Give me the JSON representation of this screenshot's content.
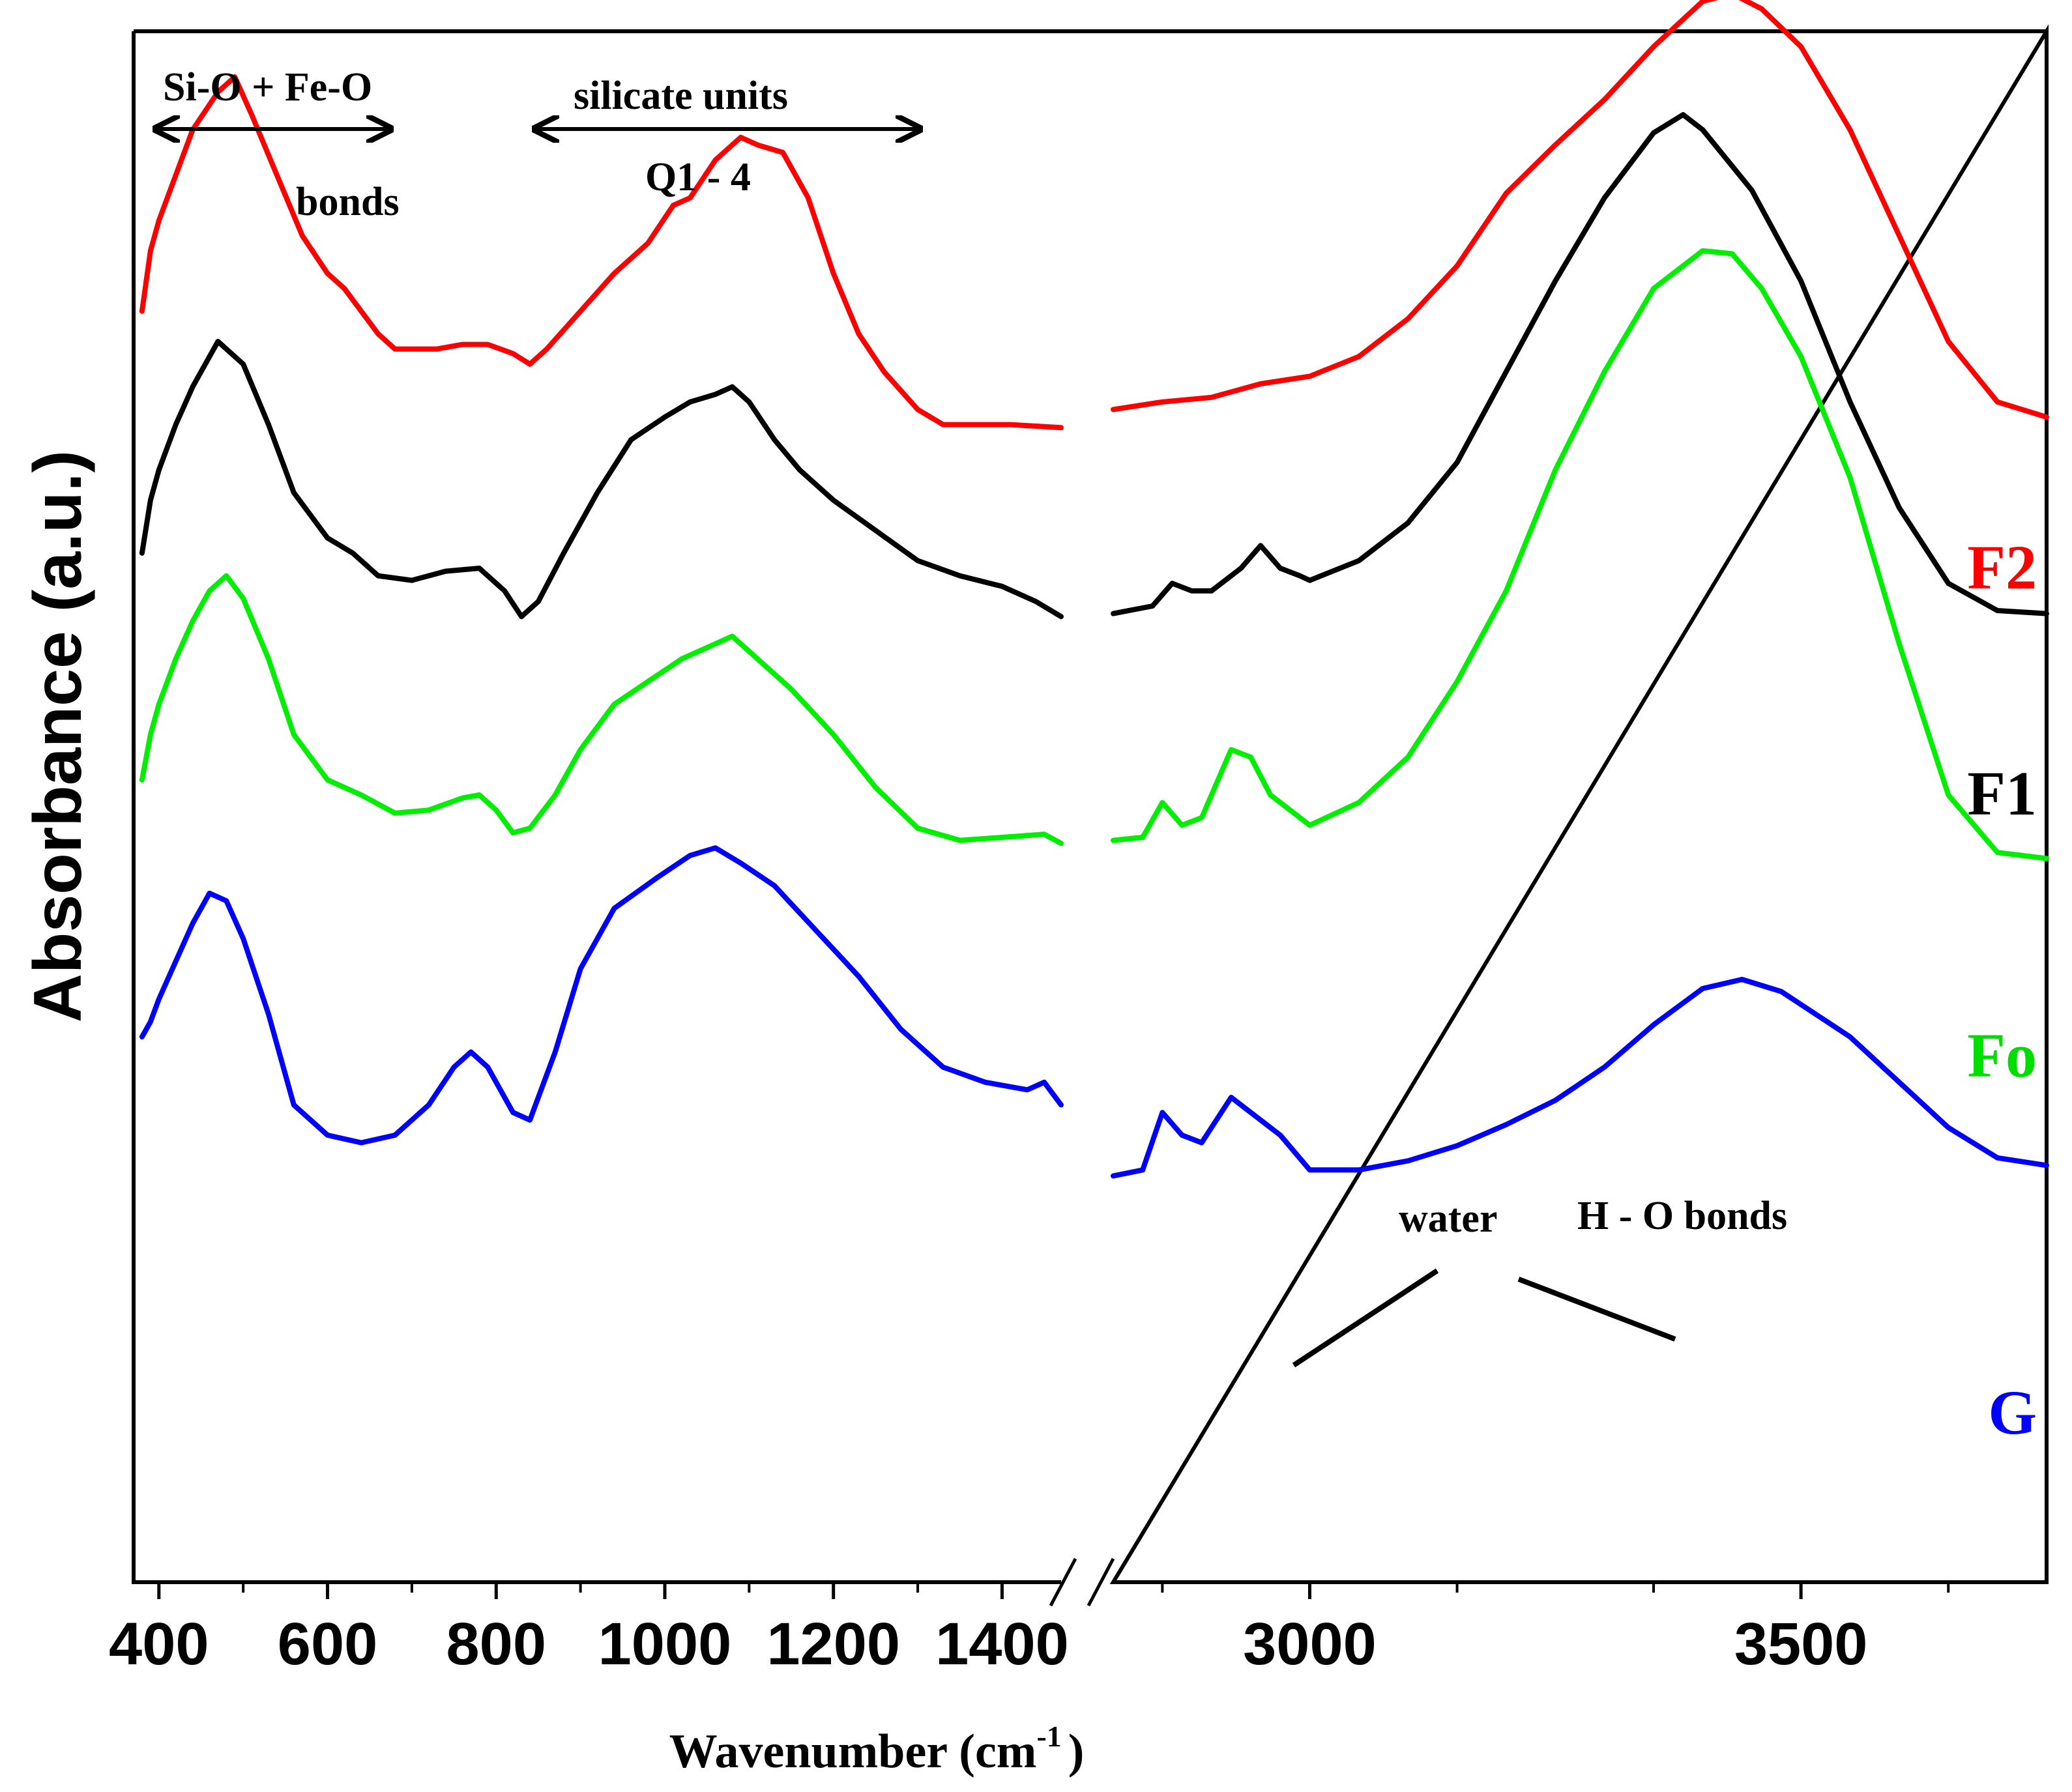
{
  "chart_data": {
    "type": "line",
    "title": "",
    "xlabel": "Wavenumber (cm",
    "xlabel_superscript": "-1",
    "xlabel_suffix": ")",
    "ylabel": "Absorbance (a.u.)",
    "axis_break": true,
    "x_segments": [
      {
        "xlim": [
          370,
          1470
        ],
        "ticks": [
          400,
          600,
          800,
          1000,
          1200,
          1400
        ],
        "tick_labels": [
          "400",
          "600",
          "800",
          "1000",
          "1200",
          "1400"
        ],
        "minor_ticks": [
          500,
          700,
          900,
          1100,
          1300
        ]
      },
      {
        "xlim": [
          2800,
          3750
        ],
        "ticks": [
          3000,
          3500
        ],
        "tick_labels": [
          "3000",
          "3500"
        ],
        "minor_ticks": [
          2850,
          3150,
          3350,
          3650
        ]
      }
    ],
    "ylim": [
      0,
      10
    ],
    "y_ticks_shown": false,
    "series": [
      {
        "name": "F2",
        "color": "#ff0000",
        "segments": [
          [
            [
              380,
              8.2
            ],
            [
              390,
              8.6
            ],
            [
              400,
              8.8
            ],
            [
              420,
              9.1
            ],
            [
              440,
              9.4
            ],
            [
              470,
              9.65
            ],
            [
              490,
              9.75
            ],
            [
              510,
              9.5
            ],
            [
              540,
              9.1
            ],
            [
              570,
              8.7
            ],
            [
              600,
              8.45
            ],
            [
              620,
              8.35
            ],
            [
              640,
              8.2
            ],
            [
              660,
              8.05
            ],
            [
              680,
              7.95
            ],
            [
              700,
              7.95
            ],
            [
              730,
              7.95
            ],
            [
              760,
              7.98
            ],
            [
              790,
              7.98
            ],
            [
              820,
              7.92
            ],
            [
              840,
              7.85
            ],
            [
              860,
              7.95
            ],
            [
              900,
              8.2
            ],
            [
              940,
              8.45
            ],
            [
              980,
              8.65
            ],
            [
              1010,
              8.9
            ],
            [
              1030,
              8.95
            ],
            [
              1060,
              9.2
            ],
            [
              1090,
              9.35
            ],
            [
              1110,
              9.3
            ],
            [
              1140,
              9.25
            ],
            [
              1170,
              8.95
            ],
            [
              1200,
              8.45
            ],
            [
              1230,
              8.05
            ],
            [
              1260,
              7.8
            ],
            [
              1300,
              7.55
            ],
            [
              1330,
              7.45
            ],
            [
              1370,
              7.45
            ],
            [
              1410,
              7.45
            ],
            [
              1470,
              7.43
            ]
          ],
          [
            [
              2800,
              7.55
            ],
            [
              2850,
              7.6
            ],
            [
              2900,
              7.63
            ],
            [
              2950,
              7.72
            ],
            [
              3000,
              7.77
            ],
            [
              3050,
              7.9
            ],
            [
              3100,
              8.15
            ],
            [
              3150,
              8.5
            ],
            [
              3200,
              8.98
            ],
            [
              3250,
              9.3
            ],
            [
              3300,
              9.6
            ],
            [
              3350,
              9.95
            ],
            [
              3400,
              10.25
            ],
            [
              3430,
              10.3
            ],
            [
              3460,
              10.2
            ],
            [
              3500,
              9.95
            ],
            [
              3550,
              9.4
            ],
            [
              3600,
              8.7
            ],
            [
              3650,
              8.0
            ],
            [
              3700,
              7.6
            ],
            [
              3750,
              7.5
            ]
          ]
        ]
      },
      {
        "name": "F1",
        "color": "#000000",
        "segments": [
          [
            [
              380,
              6.6
            ],
            [
              390,
              6.95
            ],
            [
              400,
              7.15
            ],
            [
              420,
              7.45
            ],
            [
              440,
              7.7
            ],
            [
              470,
              8.0
            ],
            [
              500,
              7.85
            ],
            [
              530,
              7.45
            ],
            [
              560,
              7.0
            ],
            [
              600,
              6.7
            ],
            [
              630,
              6.6
            ],
            [
              660,
              6.45
            ],
            [
              700,
              6.42
            ],
            [
              740,
              6.48
            ],
            [
              780,
              6.5
            ],
            [
              810,
              6.35
            ],
            [
              830,
              6.18
            ],
            [
              850,
              6.28
            ],
            [
              880,
              6.6
            ],
            [
              920,
              7.0
            ],
            [
              960,
              7.35
            ],
            [
              1000,
              7.5
            ],
            [
              1030,
              7.6
            ],
            [
              1060,
              7.65
            ],
            [
              1080,
              7.7
            ],
            [
              1100,
              7.6
            ],
            [
              1130,
              7.35
            ],
            [
              1160,
              7.15
            ],
            [
              1200,
              6.95
            ],
            [
              1250,
              6.75
            ],
            [
              1300,
              6.55
            ],
            [
              1350,
              6.45
            ],
            [
              1400,
              6.38
            ],
            [
              1440,
              6.28
            ],
            [
              1470,
              6.18
            ]
          ],
          [
            [
              2800,
              6.2
            ],
            [
              2840,
              6.25
            ],
            [
              2860,
              6.4
            ],
            [
              2880,
              6.35
            ],
            [
              2900,
              6.35
            ],
            [
              2930,
              6.5
            ],
            [
              2950,
              6.65
            ],
            [
              2970,
              6.5
            ],
            [
              2990,
              6.45
            ],
            [
              3000,
              6.42
            ],
            [
              3050,
              6.55
            ],
            [
              3100,
              6.8
            ],
            [
              3150,
              7.2
            ],
            [
              3200,
              7.8
            ],
            [
              3250,
              8.4
            ],
            [
              3300,
              8.95
            ],
            [
              3350,
              9.38
            ],
            [
              3380,
              9.5
            ],
            [
              3400,
              9.4
            ],
            [
              3450,
              9.0
            ],
            [
              3500,
              8.4
            ],
            [
              3550,
              7.6
            ],
            [
              3600,
              6.9
            ],
            [
              3650,
              6.4
            ],
            [
              3700,
              6.22
            ],
            [
              3750,
              6.2
            ]
          ]
        ]
      },
      {
        "name": "Fo",
        "color": "#00ee00",
        "segments": [
          [
            [
              380,
              5.1
            ],
            [
              390,
              5.4
            ],
            [
              400,
              5.6
            ],
            [
              420,
              5.9
            ],
            [
              440,
              6.15
            ],
            [
              460,
              6.35
            ],
            [
              480,
              6.45
            ],
            [
              500,
              6.3
            ],
            [
              530,
              5.9
            ],
            [
              560,
              5.4
            ],
            [
              600,
              5.1
            ],
            [
              640,
              5.0
            ],
            [
              680,
              4.88
            ],
            [
              720,
              4.9
            ],
            [
              760,
              4.98
            ],
            [
              780,
              5.0
            ],
            [
              800,
              4.9
            ],
            [
              820,
              4.75
            ],
            [
              840,
              4.78
            ],
            [
              870,
              5.0
            ],
            [
              900,
              5.3
            ],
            [
              940,
              5.6
            ],
            [
              980,
              5.75
            ],
            [
              1020,
              5.9
            ],
            [
              1060,
              6.0
            ],
            [
              1080,
              6.05
            ],
            [
              1100,
              5.95
            ],
            [
              1150,
              5.7
            ],
            [
              1200,
              5.4
            ],
            [
              1250,
              5.05
            ],
            [
              1300,
              4.78
            ],
            [
              1350,
              4.7
            ],
            [
              1400,
              4.72
            ],
            [
              1450,
              4.74
            ],
            [
              1470,
              4.68
            ]
          ],
          [
            [
              2800,
              4.7
            ],
            [
              2830,
              4.72
            ],
            [
              2850,
              4.95
            ],
            [
              2870,
              4.8
            ],
            [
              2890,
              4.85
            ],
            [
              2920,
              5.3
            ],
            [
              2940,
              5.25
            ],
            [
              2960,
              5.0
            ],
            [
              2970,
              4.95
            ],
            [
              3000,
              4.8
            ],
            [
              3050,
              4.95
            ],
            [
              3100,
              5.25
            ],
            [
              3150,
              5.75
            ],
            [
              3200,
              6.35
            ],
            [
              3250,
              7.15
            ],
            [
              3300,
              7.8
            ],
            [
              3350,
              8.35
            ],
            [
              3400,
              8.6
            ],
            [
              3430,
              8.58
            ],
            [
              3460,
              8.35
            ],
            [
              3500,
              7.9
            ],
            [
              3550,
              7.1
            ],
            [
              3600,
              6.0
            ],
            [
              3650,
              5.0
            ],
            [
              3700,
              4.62
            ],
            [
              3750,
              4.58
            ]
          ]
        ]
      },
      {
        "name": "G",
        "color": "#0000ff",
        "segments": [
          [
            [
              380,
              3.4
            ],
            [
              390,
              3.5
            ],
            [
              400,
              3.65
            ],
            [
              420,
              3.9
            ],
            [
              440,
              4.15
            ],
            [
              460,
              4.35
            ],
            [
              480,
              4.3
            ],
            [
              500,
              4.05
            ],
            [
              530,
              3.55
            ],
            [
              560,
              2.95
            ],
            [
              600,
              2.75
            ],
            [
              640,
              2.7
            ],
            [
              680,
              2.75
            ],
            [
              720,
              2.95
            ],
            [
              750,
              3.2
            ],
            [
              770,
              3.3
            ],
            [
              790,
              3.2
            ],
            [
              820,
              2.9
            ],
            [
              840,
              2.85
            ],
            [
              870,
              3.3
            ],
            [
              900,
              3.85
            ],
            [
              940,
              4.25
            ],
            [
              990,
              4.45
            ],
            [
              1030,
              4.6
            ],
            [
              1060,
              4.65
            ],
            [
              1090,
              4.55
            ],
            [
              1130,
              4.4
            ],
            [
              1180,
              4.1
            ],
            [
              1230,
              3.8
            ],
            [
              1280,
              3.45
            ],
            [
              1330,
              3.2
            ],
            [
              1380,
              3.1
            ],
            [
              1430,
              3.05
            ],
            [
              1450,
              3.1
            ],
            [
              1470,
              2.95
            ]
          ],
          [
            [
              2800,
              2.48
            ],
            [
              2830,
              2.52
            ],
            [
              2850,
              2.9
            ],
            [
              2870,
              2.75
            ],
            [
              2890,
              2.7
            ],
            [
              2920,
              3.0
            ],
            [
              2940,
              2.9
            ],
            [
              2960,
              2.8
            ],
            [
              2970,
              2.75
            ],
            [
              3000,
              2.52
            ],
            [
              3050,
              2.52
            ],
            [
              3100,
              2.58
            ],
            [
              3150,
              2.68
            ],
            [
              3200,
              2.82
            ],
            [
              3250,
              2.98
            ],
            [
              3300,
              3.2
            ],
            [
              3350,
              3.48
            ],
            [
              3400,
              3.72
            ],
            [
              3440,
              3.78
            ],
            [
              3480,
              3.7
            ],
            [
              3550,
              3.4
            ],
            [
              3600,
              3.1
            ],
            [
              3650,
              2.8
            ],
            [
              3700,
              2.6
            ],
            [
              3750,
              2.55
            ]
          ]
        ]
      }
    ],
    "legend": {
      "placement": "right inline labels",
      "entries": [
        "F2",
        "F1",
        "Fo",
        "G"
      ]
    },
    "annotations": {
      "bracket1_top": "Si-O + Fe-O",
      "bracket1_bottom": "bonds",
      "bracket2_top": "silicate units",
      "bracket2_bottom": "Q1 - 4",
      "water_label": "water",
      "ho_label": "H - O bonds"
    }
  }
}
